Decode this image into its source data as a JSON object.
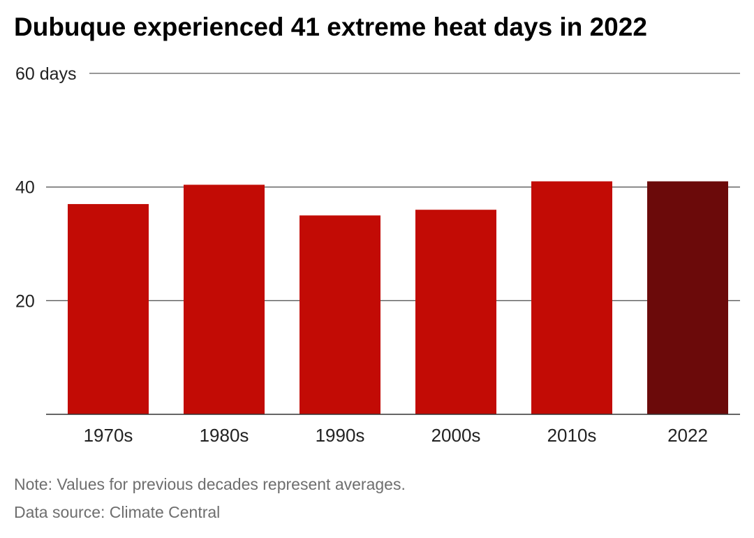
{
  "title": "Dubuque experienced 41 extreme heat days in 2022",
  "note": "Note: Values for previous decades represent averages.",
  "source": "Data source: Climate Central",
  "colors": {
    "bar": "#c20b05",
    "highlight": "#6b0a0a",
    "grid": "#5a5a5a",
    "axis_text": "#222222"
  },
  "chart_data": {
    "type": "bar",
    "categories": [
      "1970s",
      "1980s",
      "1990s",
      "2000s",
      "2010s",
      "2022"
    ],
    "values": [
      37,
      40.4,
      35,
      36,
      41,
      41
    ],
    "highlight_category": "2022",
    "ylim": [
      0,
      60
    ],
    "yticks": [
      20,
      40,
      60
    ],
    "ytick_labels": [
      "20",
      "40",
      "60 days"
    ],
    "grid": true
  }
}
